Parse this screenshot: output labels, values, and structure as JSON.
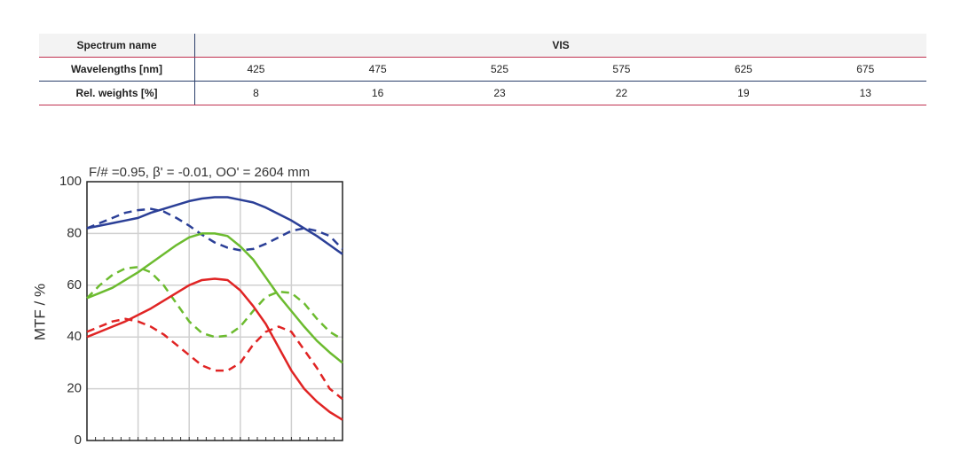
{
  "table": {
    "header": [
      "Spectrum name",
      "VIS"
    ],
    "rows": [
      [
        "Wavelengths [nm]",
        425,
        475,
        525,
        575,
        625,
        675
      ],
      [
        "Rel. weights [%]",
        8,
        16,
        23,
        22,
        19,
        13
      ]
    ]
  },
  "chart_data": {
    "type": "line",
    "title": "F/# =0.95, β' = -0.01, OO' = 2604 mm",
    "y_label": "MTF / %",
    "categories": [
      null,
      null,
      null,
      null,
      null,
      null,
      null,
      null,
      null,
      null,
      null,
      null,
      null,
      null,
      null,
      null,
      null,
      null,
      null,
      null,
      null
    ],
    "ylim": [
      0,
      100
    ],
    "yticks": [
      0,
      20,
      40,
      60,
      80,
      100
    ],
    "grid": true,
    "series": [
      {
        "color": "#2b3f97",
        "dashed": false,
        "values": [
          82,
          83,
          84,
          85,
          86,
          88,
          89.5,
          91,
          92.5,
          93.5,
          94,
          94,
          93,
          92,
          90,
          87.5,
          85,
          82,
          79,
          75.5,
          72
        ]
      },
      {
        "color": "#2b3f97",
        "dashed": true,
        "values": [
          82,
          84,
          86,
          88,
          89,
          89.5,
          88.5,
          86,
          83,
          79.5,
          76.5,
          74.5,
          73.5,
          74,
          76,
          78.5,
          81,
          82,
          81,
          79,
          74
        ]
      },
      {
        "color": "#6cbb2f",
        "dashed": false,
        "values": [
          55,
          57,
          59,
          62,
          65,
          68.5,
          72,
          75.5,
          78.5,
          80,
          80,
          79,
          75,
          70,
          63,
          56,
          50,
          44,
          38.5,
          34,
          30
        ]
      },
      {
        "color": "#6cbb2f",
        "dashed": true,
        "values": [
          55,
          60,
          64,
          66.5,
          67,
          65,
          60,
          53,
          46,
          41.5,
          40,
          40.5,
          44,
          50,
          55.5,
          57.5,
          57,
          53,
          47,
          42,
          39
        ]
      },
      {
        "color": "#e02424",
        "dashed": false,
        "values": [
          40,
          42,
          44,
          46,
          48.5,
          51,
          54,
          57,
          60,
          62,
          62.5,
          62,
          58,
          52,
          45,
          36,
          27,
          20,
          15,
          11,
          8
        ]
      },
      {
        "color": "#e02424",
        "dashed": true,
        "values": [
          42,
          44,
          46,
          47,
          46,
          44,
          41,
          37,
          33,
          29,
          27,
          27,
          30,
          37,
          42,
          44,
          42,
          35,
          28,
          20,
          16
        ]
      }
    ]
  }
}
